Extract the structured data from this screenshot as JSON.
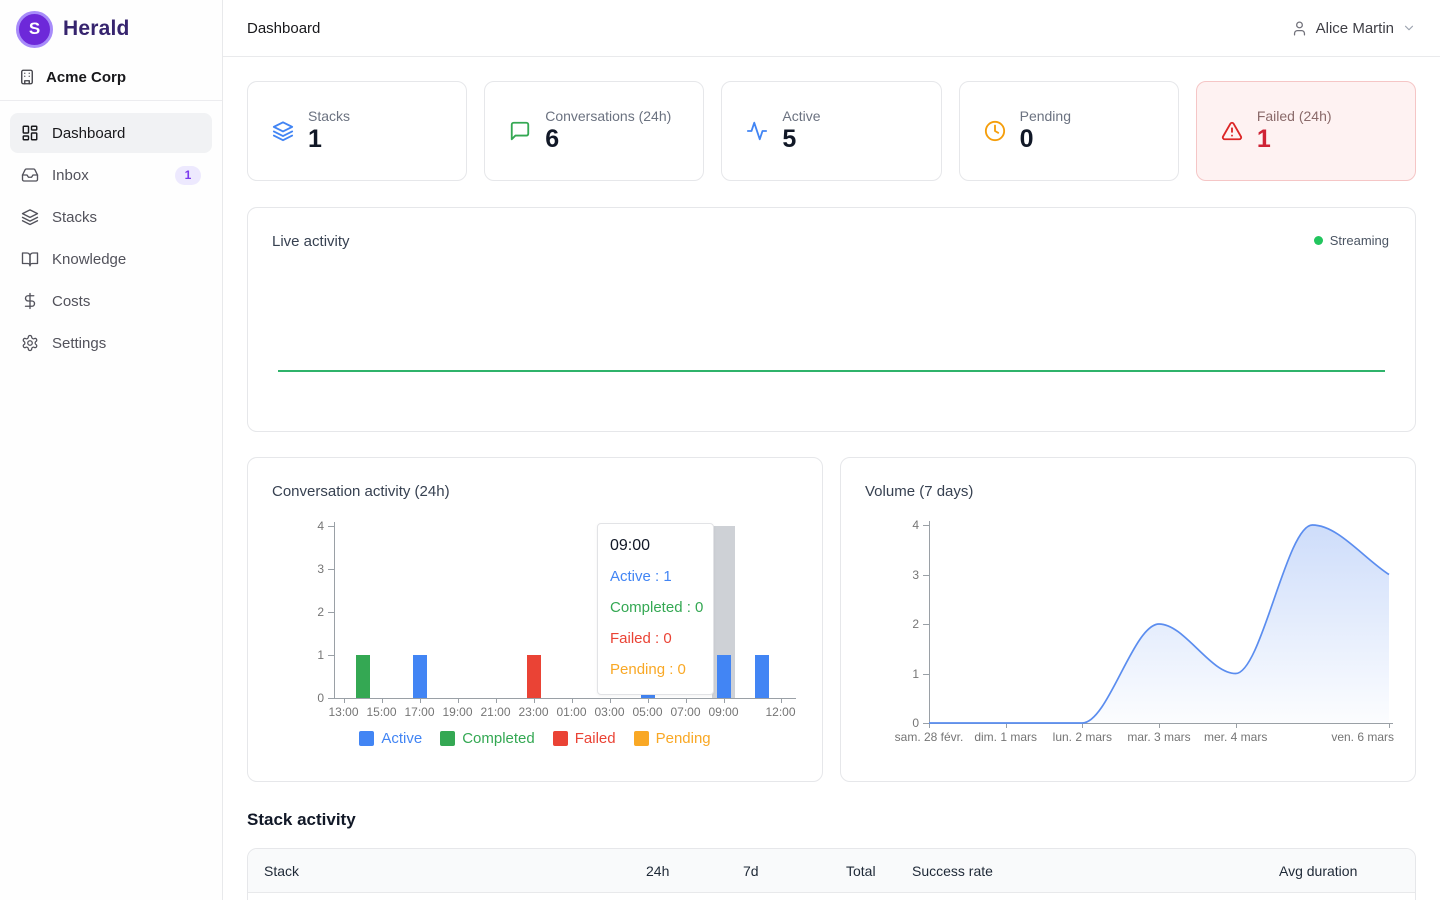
{
  "brand": {
    "name": "Herald",
    "logo_letter": "S",
    "accent_color": "#7c3aed"
  },
  "org": {
    "name": "Acme Corp"
  },
  "sidebar": {
    "items": [
      {
        "label": "Dashboard",
        "icon": "layout-dashboard",
        "active": true
      },
      {
        "label": "Inbox",
        "icon": "inbox",
        "badge": "1"
      },
      {
        "label": "Stacks",
        "icon": "layers"
      },
      {
        "label": "Knowledge",
        "icon": "book-open"
      },
      {
        "label": "Costs",
        "icon": "dollar-sign"
      },
      {
        "label": "Settings",
        "icon": "gear"
      }
    ]
  },
  "header": {
    "title": "Dashboard",
    "user_name": "Alice Martin"
  },
  "stats": [
    {
      "label": "Stacks",
      "value": "1",
      "icon": "layers-icon",
      "color": "#4285f4"
    },
    {
      "label": "Conversations (24h)",
      "value": "6",
      "icon": "message-square-icon",
      "color": "#34a853"
    },
    {
      "label": "Active",
      "value": "5",
      "icon": "activity-icon",
      "color": "#4285f4"
    },
    {
      "label": "Pending",
      "value": "0",
      "icon": "clock-icon",
      "color": "#f59e0b"
    },
    {
      "label": "Failed (24h)",
      "value": "1",
      "icon": "alert-triangle-icon",
      "color": "#dc2626"
    }
  ],
  "live_activity": {
    "title": "Live activity",
    "status": "Streaming",
    "status_dot_color": "#22c55e",
    "line_color": "#2fb36b"
  },
  "chart_data": [
    {
      "id": "conversation-activity",
      "type": "bar",
      "title": "Conversation activity (24h)",
      "categories": [
        "13:00",
        "14:00",
        "15:00",
        "16:00",
        "17:00",
        "18:00",
        "19:00",
        "20:00",
        "21:00",
        "22:00",
        "23:00",
        "00:00",
        "01:00",
        "02:00",
        "03:00",
        "04:00",
        "05:00",
        "06:00",
        "07:00",
        "08:00",
        "09:00",
        "10:00",
        "11:00",
        "12:00"
      ],
      "x_tick_labels": [
        {
          "label": "13:00",
          "index": 0
        },
        {
          "label": "15:00",
          "index": 2
        },
        {
          "label": "17:00",
          "index": 4
        },
        {
          "label": "19:00",
          "index": 6
        },
        {
          "label": "21:00",
          "index": 8
        },
        {
          "label": "23:00",
          "index": 10
        },
        {
          "label": "01:00",
          "index": 12
        },
        {
          "label": "03:00",
          "index": 14
        },
        {
          "label": "05:00",
          "index": 16
        },
        {
          "label": "07:00",
          "index": 18
        },
        {
          "label": "09:00",
          "index": 20
        },
        {
          "label": "12:00",
          "index": 23
        }
      ],
      "series": [
        {
          "name": "Active",
          "color": "#4285f4",
          "values": [
            0,
            0,
            0,
            0,
            1,
            0,
            0,
            0,
            0,
            0,
            0,
            0,
            0,
            0,
            0,
            0,
            1,
            0,
            0,
            0,
            1,
            0,
            1,
            0
          ]
        },
        {
          "name": "Completed",
          "color": "#34a853",
          "values": [
            0,
            1,
            0,
            0,
            0,
            0,
            0,
            0,
            0,
            0,
            0,
            0,
            0,
            0,
            0,
            0,
            0,
            0,
            0,
            0,
            0,
            0,
            0,
            0
          ]
        },
        {
          "name": "Failed",
          "color": "#ea4335",
          "values": [
            0,
            0,
            0,
            0,
            0,
            0,
            0,
            0,
            0,
            0,
            1,
            0,
            0,
            0,
            0,
            0,
            0,
            0,
            0,
            0,
            0,
            0,
            0,
            0
          ]
        },
        {
          "name": "Pending",
          "color": "#f9a825",
          "values": [
            0,
            0,
            0,
            0,
            0,
            0,
            0,
            0,
            0,
            0,
            0,
            0,
            0,
            0,
            0,
            0,
            0,
            0,
            0,
            0,
            0,
            0,
            0,
            0
          ]
        }
      ],
      "ylim": [
        0,
        4
      ],
      "y_ticks": [
        0,
        1,
        2,
        3,
        4
      ],
      "grid": false,
      "legend_position": "bottom",
      "hover": {
        "category": "09:00",
        "index": 20,
        "tooltip_rows": [
          {
            "series": "Active",
            "value": 1
          },
          {
            "series": "Completed",
            "value": 0
          },
          {
            "series": "Failed",
            "value": 0
          },
          {
            "series": "Pending",
            "value": 0
          }
        ]
      }
    },
    {
      "id": "volume-7-days",
      "type": "area",
      "title": "Volume (7 days)",
      "x": [
        "sam. 28 févr.",
        "dim. 1 mars",
        "lun. 2 mars",
        "mar. 3 mars",
        "mer. 4 mars",
        "jeu. 5 mars",
        "ven. 6 mars"
      ],
      "values": [
        0,
        0,
        0,
        2,
        1,
        4,
        3
      ],
      "x_tick_labels": [
        {
          "label": "sam. 28 févr.",
          "index": 0
        },
        {
          "label": "dim. 1 mars",
          "index": 1
        },
        {
          "label": "lun. 2 mars",
          "index": 2
        },
        {
          "label": "mar. 3 mars",
          "index": 3
        },
        {
          "label": "mer. 4 mars",
          "index": 4
        },
        {
          "label": "ven. 6 mars",
          "index": 6
        }
      ],
      "ylim": [
        0,
        4
      ],
      "y_ticks": [
        0,
        1,
        2,
        3,
        4
      ],
      "line_color": "#5b8def",
      "fill": "blue-gradient",
      "grid": false,
      "legend_position": "none"
    }
  ],
  "stack_table": {
    "title": "Stack activity",
    "columns": [
      "Stack",
      "24h",
      "7d",
      "Total",
      "Success rate",
      "Avg duration"
    ]
  }
}
